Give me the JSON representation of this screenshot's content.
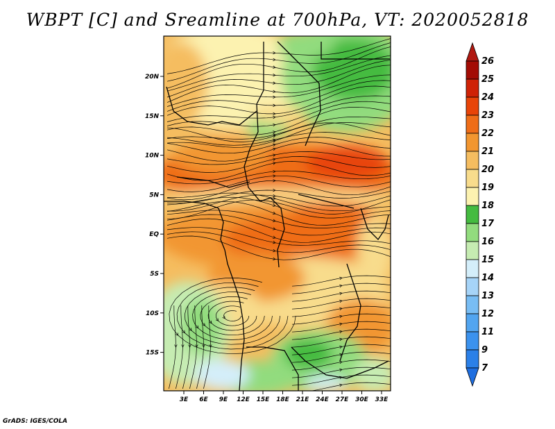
{
  "title": "WBPT [C] and Sreamline at 700hPa, VT: 2020052818",
  "credit": "GrADS: IGES/COLA",
  "axes": {
    "lon_ticks": [
      "3E",
      "6E",
      "9E",
      "12E",
      "15E",
      "18E",
      "21E",
      "24E",
      "27E",
      "30E",
      "33E"
    ],
    "lat_ticks": [
      "20N",
      "15N",
      "10N",
      "5N",
      "EQ",
      "5S",
      "10S",
      "15S"
    ]
  },
  "colorbar": {
    "levels": [
      "7",
      "9",
      "11",
      "12",
      "13",
      "14",
      "15",
      "16",
      "17",
      "18",
      "19",
      "20",
      "21",
      "22",
      "23",
      "24",
      "25",
      "26"
    ],
    "colors": [
      "#1e6ee0",
      "#2b80e8",
      "#3b92ee",
      "#52a5f0",
      "#78bdf4",
      "#a6d4f8",
      "#d4eefa",
      "#c6ecb2",
      "#92dc7e",
      "#44bb40",
      "#fcf2b0",
      "#f8dc8c",
      "#f5bd60",
      "#f29630",
      "#ef6d18",
      "#e84408",
      "#cf2206",
      "#a30c04",
      "#b01810"
    ]
  }
}
